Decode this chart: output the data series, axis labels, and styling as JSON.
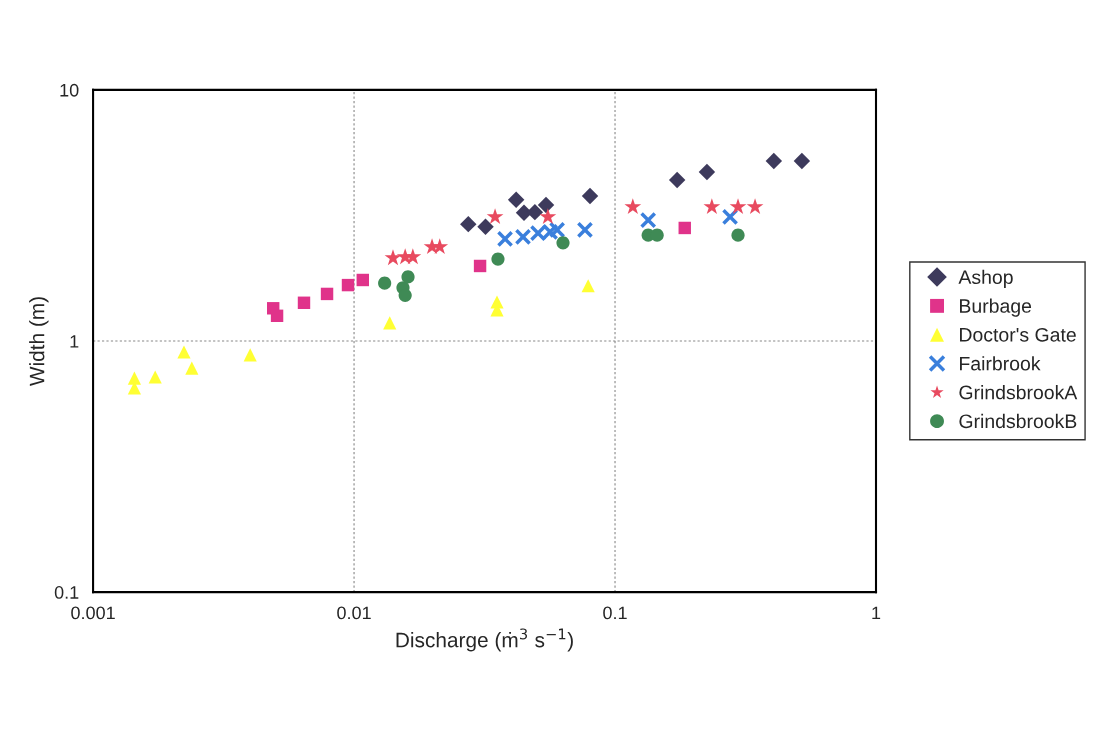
{
  "chart_data": {
    "type": "scatter",
    "xlabel": "Discharge (ṁ$^{3}$ s$^{−1}$)",
    "ylabel": "Width (m)",
    "log": "xy",
    "grid": true,
    "legend": "right",
    "xlim": [
      0.001,
      1
    ],
    "xticks": [
      0.001,
      0.01,
      0.1,
      1
    ],
    "ylim": [
      0.1,
      10
    ],
    "yticks": [
      0.1,
      1,
      10
    ],
    "series": [
      {
        "name": "Ashop",
        "color": "#3d3a5c",
        "marker": "diamond",
        "x": [
          0.0274,
          0.0319,
          0.0418,
          0.0448,
          0.0493,
          0.0544,
          0.0802,
          0.173,
          0.225,
          0.406,
          0.52
        ],
        "values": [
          2.92,
          2.85,
          3.65,
          3.24,
          3.26,
          3.48,
          3.78,
          4.38,
          4.71,
          5.21,
          5.21
        ]
      },
      {
        "name": "Burbage",
        "color": "#e0338a",
        "marker": "square",
        "x": [
          0.0049,
          0.00507,
          0.00643,
          0.00788,
          0.00948,
          0.0108,
          0.0304,
          0.185
        ],
        "values": [
          1.35,
          1.26,
          1.42,
          1.54,
          1.67,
          1.75,
          1.99,
          2.82
        ]
      },
      {
        "name": "Doctor's Gate",
        "color": "#ffff33",
        "marker": "triangle",
        "x": [
          0.00144,
          0.00144,
          0.00173,
          0.00223,
          0.00239,
          0.004,
          0.0137,
          0.0353,
          0.0353,
          0.0789
        ],
        "values": [
          0.712,
          0.65,
          0.719,
          0.904,
          0.78,
          0.88,
          1.18,
          1.43,
          1.33,
          1.66
        ]
      },
      {
        "name": "Fairbrook",
        "color": "#3a7fdc",
        "marker": "cross",
        "x": [
          0.0379,
          0.0444,
          0.0507,
          0.0564,
          0.06,
          0.0767,
          0.134,
          0.276
        ],
        "values": [
          2.55,
          2.6,
          2.69,
          2.72,
          2.77,
          2.77,
          3.03,
          3.12
        ]
      },
      {
        "name": "GrindsbrookA",
        "color": "#e84a5f",
        "marker": "star",
        "x": [
          0.0141,
          0.0157,
          0.0168,
          0.0199,
          0.0213,
          0.0347,
          0.0553,
          0.117,
          0.235,
          0.296,
          0.344
        ],
        "values": [
          2.14,
          2.16,
          2.16,
          2.37,
          2.37,
          3.12,
          3.12,
          3.42,
          3.42,
          3.42,
          3.42
        ]
      },
      {
        "name": "GrindsbrookB",
        "color": "#3f8a55",
        "marker": "circle",
        "x": [
          0.0131,
          0.0154,
          0.0161,
          0.0157,
          0.0356,
          0.0632,
          0.134,
          0.145,
          0.296
        ],
        "values": [
          1.7,
          1.63,
          1.8,
          1.52,
          2.12,
          2.46,
          2.64,
          2.64,
          2.64
        ]
      }
    ]
  }
}
